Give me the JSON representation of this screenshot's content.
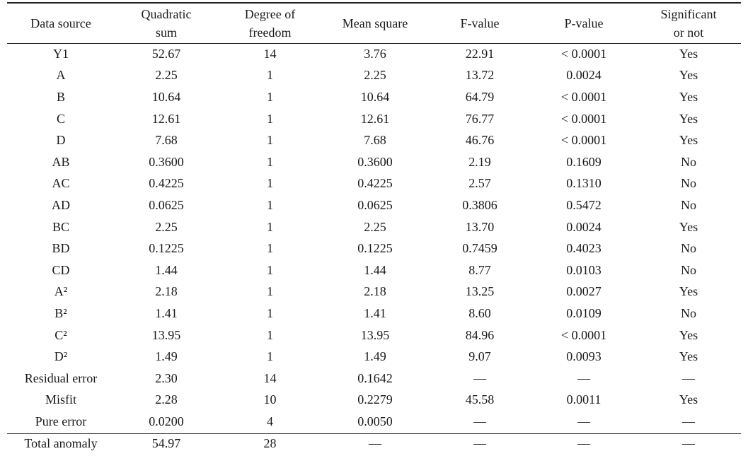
{
  "table": {
    "headers": [
      "Data source",
      "Quadratic\nsum",
      "Degree of\nfreedom",
      "Mean square",
      "F-value",
      "P-value",
      "Significant\nor not"
    ],
    "rows": [
      [
        "Y1",
        "52.67",
        "14",
        "3.76",
        "22.91",
        "< 0.0001",
        "Yes"
      ],
      [
        "A",
        "2.25",
        "1",
        "2.25",
        "13.72",
        "0.0024",
        "Yes"
      ],
      [
        "B",
        "10.64",
        "1",
        "10.64",
        "64.79",
        "< 0.0001",
        "Yes"
      ],
      [
        "C",
        "12.61",
        "1",
        "12.61",
        "76.77",
        "< 0.0001",
        "Yes"
      ],
      [
        "D",
        "7.68",
        "1",
        "7.68",
        "46.76",
        "< 0.0001",
        "Yes"
      ],
      [
        "AB",
        "0.3600",
        "1",
        "0.3600",
        "2.19",
        "0.1609",
        "No"
      ],
      [
        "AC",
        "0.4225",
        "1",
        "0.4225",
        "2.57",
        "0.1310",
        "No"
      ],
      [
        "AD",
        "0.0625",
        "1",
        "0.0625",
        "0.3806",
        "0.5472",
        "No"
      ],
      [
        "BC",
        "2.25",
        "1",
        "2.25",
        "13.70",
        "0.0024",
        "Yes"
      ],
      [
        "BD",
        "0.1225",
        "1",
        "0.1225",
        "0.7459",
        "0.4023",
        "No"
      ],
      [
        "CD",
        "1.44",
        "1",
        "1.44",
        "8.77",
        "0.0103",
        "No"
      ],
      [
        "A²",
        "2.18",
        "1",
        "2.18",
        "13.25",
        "0.0027",
        "Yes"
      ],
      [
        "B²",
        "1.41",
        "1",
        "1.41",
        "8.60",
        "0.0109",
        "No"
      ],
      [
        "C²",
        "13.95",
        "1",
        "13.95",
        "84.96",
        "< 0.0001",
        "Yes"
      ],
      [
        "D²",
        "1.49",
        "1",
        "1.49",
        "9.07",
        "0.0093",
        "Yes"
      ],
      [
        "Residual error",
        "2.30",
        "14",
        "0.1642",
        "—",
        "—",
        "—"
      ],
      [
        "Misfit",
        "2.28",
        "10",
        "0.2279",
        "45.58",
        "0.0011",
        "Yes"
      ],
      [
        "Pure error",
        "0.0200",
        "4",
        "0.0050",
        "—",
        "—",
        "—"
      ]
    ],
    "total_row": [
      "Total anomaly",
      "54.97",
      "28",
      "—",
      "—",
      "—",
      "—"
    ]
  }
}
